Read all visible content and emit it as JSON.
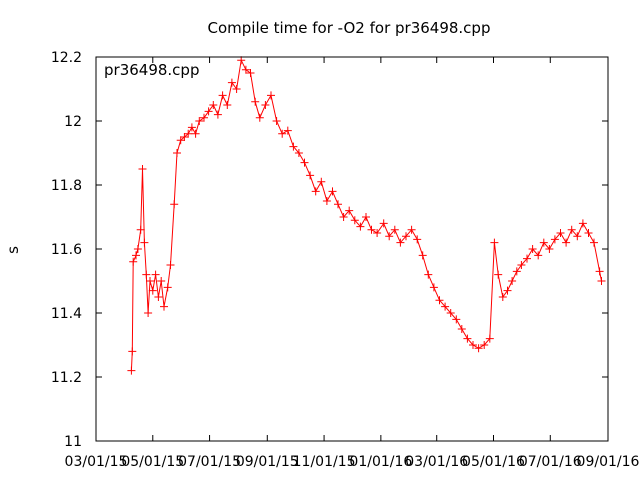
{
  "chart_data": {
    "type": "line",
    "title": "Compile time for -O2 for pr36498.cpp",
    "xlabel": "",
    "ylabel": "s",
    "legend_text": "pr36498.cpp",
    "legend_position": "top-left",
    "grid": false,
    "marker": "plus",
    "color": "#ff0000",
    "xlim": [
      "2015-03-01",
      "2016-09-01"
    ],
    "ylim": [
      11,
      12.2
    ],
    "y_ticks": [
      {
        "value": 11,
        "label": "11"
      },
      {
        "value": 11.2,
        "label": "11.2"
      },
      {
        "value": 11.4,
        "label": "11.4"
      },
      {
        "value": 11.6,
        "label": "11.6"
      },
      {
        "value": 11.8,
        "label": "11.8"
      },
      {
        "value": 12,
        "label": "12"
      },
      {
        "value": 12.2,
        "label": "12.2"
      }
    ],
    "x_ticks": [
      {
        "value": "2015-03-01",
        "label": "03/01/15"
      },
      {
        "value": "2015-05-01",
        "label": "05/01/15"
      },
      {
        "value": "2015-07-01",
        "label": "07/01/15"
      },
      {
        "value": "2015-09-01",
        "label": "09/01/15"
      },
      {
        "value": "2015-11-01",
        "label": "11/01/15"
      },
      {
        "value": "2016-01-01",
        "label": "01/01/16"
      },
      {
        "value": "2016-03-01",
        "label": "03/01/16"
      },
      {
        "value": "2016-05-01",
        "label": "05/01/16"
      },
      {
        "value": "2016-07-01",
        "label": "07/01/16"
      },
      {
        "value": "2016-09-01",
        "label": "09/01/16"
      }
    ],
    "series": [
      {
        "points": [
          [
            "2015-04-08",
            11.22
          ],
          [
            "2015-04-09",
            11.28
          ],
          [
            "2015-04-10",
            11.56
          ],
          [
            "2015-04-13",
            11.58
          ],
          [
            "2015-04-15",
            11.6
          ],
          [
            "2015-04-18",
            11.66
          ],
          [
            "2015-04-20",
            11.85
          ],
          [
            "2015-04-22",
            11.62
          ],
          [
            "2015-04-24",
            11.52
          ],
          [
            "2015-04-26",
            11.4
          ],
          [
            "2015-04-28",
            11.5
          ],
          [
            "2015-05-01",
            11.47
          ],
          [
            "2015-05-04",
            11.52
          ],
          [
            "2015-05-07",
            11.45
          ],
          [
            "2015-05-10",
            11.5
          ],
          [
            "2015-05-13",
            11.42
          ],
          [
            "2015-05-17",
            11.48
          ],
          [
            "2015-05-20",
            11.55
          ],
          [
            "2015-05-24",
            11.74
          ],
          [
            "2015-05-27",
            11.9
          ],
          [
            "2015-05-31",
            11.94
          ],
          [
            "2015-06-04",
            11.95
          ],
          [
            "2015-06-08",
            11.96
          ],
          [
            "2015-06-12",
            11.98
          ],
          [
            "2015-06-16",
            11.96
          ],
          [
            "2015-06-20",
            12.0
          ],
          [
            "2015-06-25",
            12.01
          ],
          [
            "2015-06-30",
            12.03
          ],
          [
            "2015-07-05",
            12.05
          ],
          [
            "2015-07-10",
            12.02
          ],
          [
            "2015-07-15",
            12.08
          ],
          [
            "2015-07-20",
            12.05
          ],
          [
            "2015-07-25",
            12.12
          ],
          [
            "2015-07-30",
            12.1
          ],
          [
            "2015-08-04",
            12.19
          ],
          [
            "2015-08-09",
            12.16
          ],
          [
            "2015-08-14",
            12.15
          ],
          [
            "2015-08-19",
            12.06
          ],
          [
            "2015-08-24",
            12.01
          ],
          [
            "2015-08-30",
            12.05
          ],
          [
            "2015-09-05",
            12.08
          ],
          [
            "2015-09-11",
            12.0
          ],
          [
            "2015-09-17",
            11.96
          ],
          [
            "2015-09-23",
            11.97
          ],
          [
            "2015-09-29",
            11.92
          ],
          [
            "2015-10-05",
            11.9
          ],
          [
            "2015-10-11",
            11.87
          ],
          [
            "2015-10-17",
            11.83
          ],
          [
            "2015-10-23",
            11.78
          ],
          [
            "2015-10-29",
            11.81
          ],
          [
            "2015-11-04",
            11.75
          ],
          [
            "2015-11-10",
            11.78
          ],
          [
            "2015-11-16",
            11.74
          ],
          [
            "2015-11-22",
            11.7
          ],
          [
            "2015-11-28",
            11.72
          ],
          [
            "2015-12-04",
            11.69
          ],
          [
            "2015-12-10",
            11.67
          ],
          [
            "2015-12-16",
            11.7
          ],
          [
            "2015-12-22",
            11.66
          ],
          [
            "2015-12-28",
            11.65
          ],
          [
            "2016-01-04",
            11.68
          ],
          [
            "2016-01-10",
            11.64
          ],
          [
            "2016-01-16",
            11.66
          ],
          [
            "2016-01-22",
            11.62
          ],
          [
            "2016-01-28",
            11.64
          ],
          [
            "2016-02-03",
            11.66
          ],
          [
            "2016-02-09",
            11.63
          ],
          [
            "2016-02-15",
            11.58
          ],
          [
            "2016-02-21",
            11.52
          ],
          [
            "2016-02-27",
            11.48
          ],
          [
            "2016-03-04",
            11.44
          ],
          [
            "2016-03-10",
            11.42
          ],
          [
            "2016-03-16",
            11.4
          ],
          [
            "2016-03-22",
            11.38
          ],
          [
            "2016-03-28",
            11.35
          ],
          [
            "2016-04-03",
            11.32
          ],
          [
            "2016-04-09",
            11.3
          ],
          [
            "2016-04-15",
            11.29
          ],
          [
            "2016-04-21",
            11.3
          ],
          [
            "2016-04-27",
            11.32
          ],
          [
            "2016-05-02",
            11.62
          ],
          [
            "2016-05-06",
            11.52
          ],
          [
            "2016-05-11",
            11.45
          ],
          [
            "2016-05-16",
            11.47
          ],
          [
            "2016-05-21",
            11.5
          ],
          [
            "2016-05-26",
            11.53
          ],
          [
            "2016-05-31",
            11.55
          ],
          [
            "2016-06-06",
            11.57
          ],
          [
            "2016-06-12",
            11.6
          ],
          [
            "2016-06-18",
            11.58
          ],
          [
            "2016-06-24",
            11.62
          ],
          [
            "2016-06-30",
            11.6
          ],
          [
            "2016-07-06",
            11.63
          ],
          [
            "2016-07-12",
            11.65
          ],
          [
            "2016-07-18",
            11.62
          ],
          [
            "2016-07-24",
            11.66
          ],
          [
            "2016-07-30",
            11.64
          ],
          [
            "2016-08-05",
            11.68
          ],
          [
            "2016-08-11",
            11.65
          ],
          [
            "2016-08-17",
            11.62
          ],
          [
            "2016-08-23",
            11.53
          ],
          [
            "2016-08-25",
            11.5
          ]
        ]
      }
    ]
  }
}
